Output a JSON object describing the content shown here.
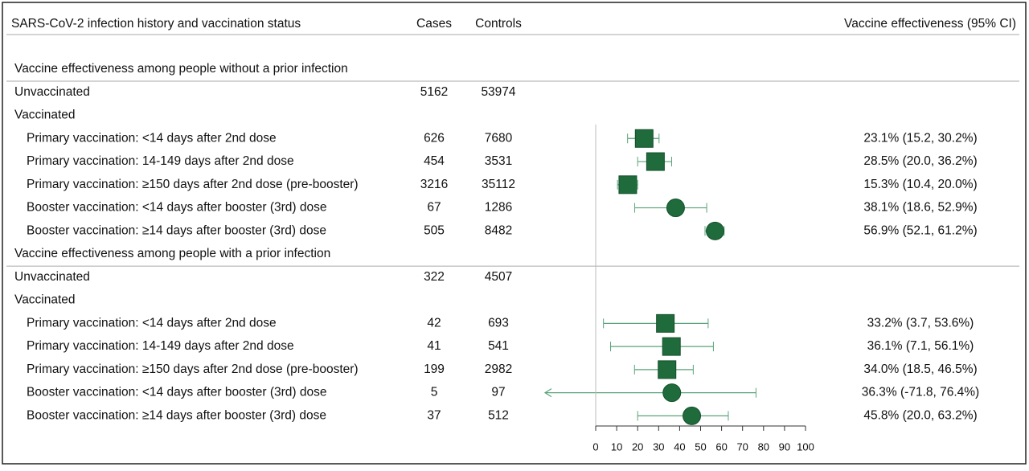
{
  "chart_data": {
    "type": "forest",
    "columns": [
      "SARS-CoV-2 infection history and vaccination status",
      "Cases",
      "Controls",
      "Vaccine effectiveness (95% CI)"
    ],
    "color": "#1f6b3b",
    "whisker_color": "#5aa37a",
    "xlim": [
      0,
      100
    ],
    "xticks": [
      0,
      10,
      20,
      30,
      40,
      50,
      60,
      70,
      80,
      90,
      100
    ],
    "sections": [
      {
        "title": "Vaccine effectiveness among people without a prior infection",
        "rows": [
          {
            "label": "Unvaccinated",
            "cases": 5162,
            "controls": 53974
          },
          {
            "label": "Vaccinated"
          },
          {
            "label": "Primary vaccination: <14 days after 2nd dose",
            "cases": 626,
            "controls": 7680,
            "ve": 23.1,
            "ci": [
              15.2,
              30.2
            ],
            "ve_label": "23.1% (15.2, 30.2%)",
            "marker": "square"
          },
          {
            "label": "Primary vaccination: 14-149 days after 2nd dose",
            "cases": 454,
            "controls": 3531,
            "ve": 28.5,
            "ci": [
              20.0,
              36.2
            ],
            "ve_label": "28.5% (20.0, 36.2%)",
            "marker": "square"
          },
          {
            "label": "Primary vaccination: ≥150 days after 2nd dose (pre-booster)",
            "cases": 3216,
            "controls": 35112,
            "ve": 15.3,
            "ci": [
              10.4,
              20.0
            ],
            "ve_label": "15.3% (10.4, 20.0%)",
            "marker": "square"
          },
          {
            "label": "Booster vaccination: <14 days after booster (3rd) dose",
            "cases": 67,
            "controls": 1286,
            "ve": 38.1,
            "ci": [
              18.6,
              52.9
            ],
            "ve_label": "38.1% (18.6, 52.9%)",
            "marker": "circle"
          },
          {
            "label": "Booster vaccination: ≥14 days after booster (3rd) dose",
            "cases": 505,
            "controls": 8482,
            "ve": 56.9,
            "ci": [
              52.1,
              61.2
            ],
            "ve_label": "56.9% (52.1, 61.2%)",
            "marker": "circle"
          }
        ]
      },
      {
        "title": "Vaccine effectiveness among people with a prior infection",
        "rows": [
          {
            "label": "Unvaccinated",
            "cases": 322,
            "controls": 4507
          },
          {
            "label": "Vaccinated"
          },
          {
            "label": "Primary vaccination: <14 days after 2nd dose",
            "cases": 42,
            "controls": 693,
            "ve": 33.2,
            "ci": [
              3.7,
              53.6
            ],
            "ve_label": "33.2% (3.7, 53.6%)",
            "marker": "square"
          },
          {
            "label": "Primary vaccination: 14-149 days after 2nd dose",
            "cases": 41,
            "controls": 541,
            "ve": 36.1,
            "ci": [
              7.1,
              56.1
            ],
            "ve_label": "36.1% (7.1, 56.1%)",
            "marker": "square"
          },
          {
            "label": "Primary vaccination: ≥150 days after 2nd dose (pre-booster)",
            "cases": 199,
            "controls": 2982,
            "ve": 34.0,
            "ci": [
              18.5,
              46.5
            ],
            "ve_label": "34.0% (18.5, 46.5%)",
            "marker": "square"
          },
          {
            "label": "Booster vaccination: <14 days after booster (3rd) dose",
            "cases": 5,
            "controls": 97,
            "ve": 36.3,
            "ci": [
              -71.8,
              76.4
            ],
            "ve_label": "36.3% (-71.8, 76.4%)",
            "marker": "circle"
          },
          {
            "label": "Booster vaccination: ≥14 days after booster (3rd) dose",
            "cases": 37,
            "controls": 512,
            "ve": 45.8,
            "ci": [
              20.0,
              63.2
            ],
            "ve_label": "45.8% (20.0, 63.2%)",
            "marker": "circle"
          }
        ]
      }
    ]
  }
}
